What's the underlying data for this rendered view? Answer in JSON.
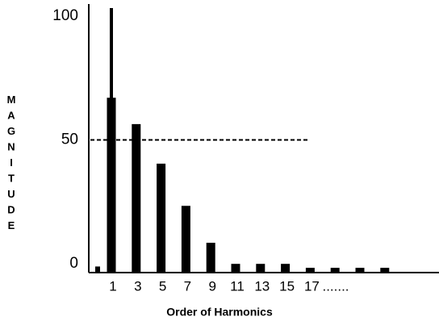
{
  "chart_data": {
    "type": "bar",
    "x_label": "Order of Harmonics",
    "y_label": "MAGNITUDE",
    "categories": [
      null,
      "1",
      "3",
      "5",
      "7",
      "9",
      "11",
      "13",
      "15",
      "17",
      null,
      ".......",
      null
    ],
    "series": [
      {
        "color": "#000000",
        "values": [
          2,
          66,
          56,
          41,
          25,
          11,
          3,
          3,
          3,
          1.5,
          1.5,
          1.5,
          1.5
        ]
      },
      {
        "color": "#000000",
        "values": [
          null,
          100,
          null,
          null,
          null,
          null,
          null,
          null,
          null,
          null,
          null,
          null,
          null
        ]
      }
    ],
    "ylim": [
      0,
      100
    ],
    "yticks": [
      0,
      50,
      100
    ],
    "reference_line": 50,
    "grid": false
  }
}
